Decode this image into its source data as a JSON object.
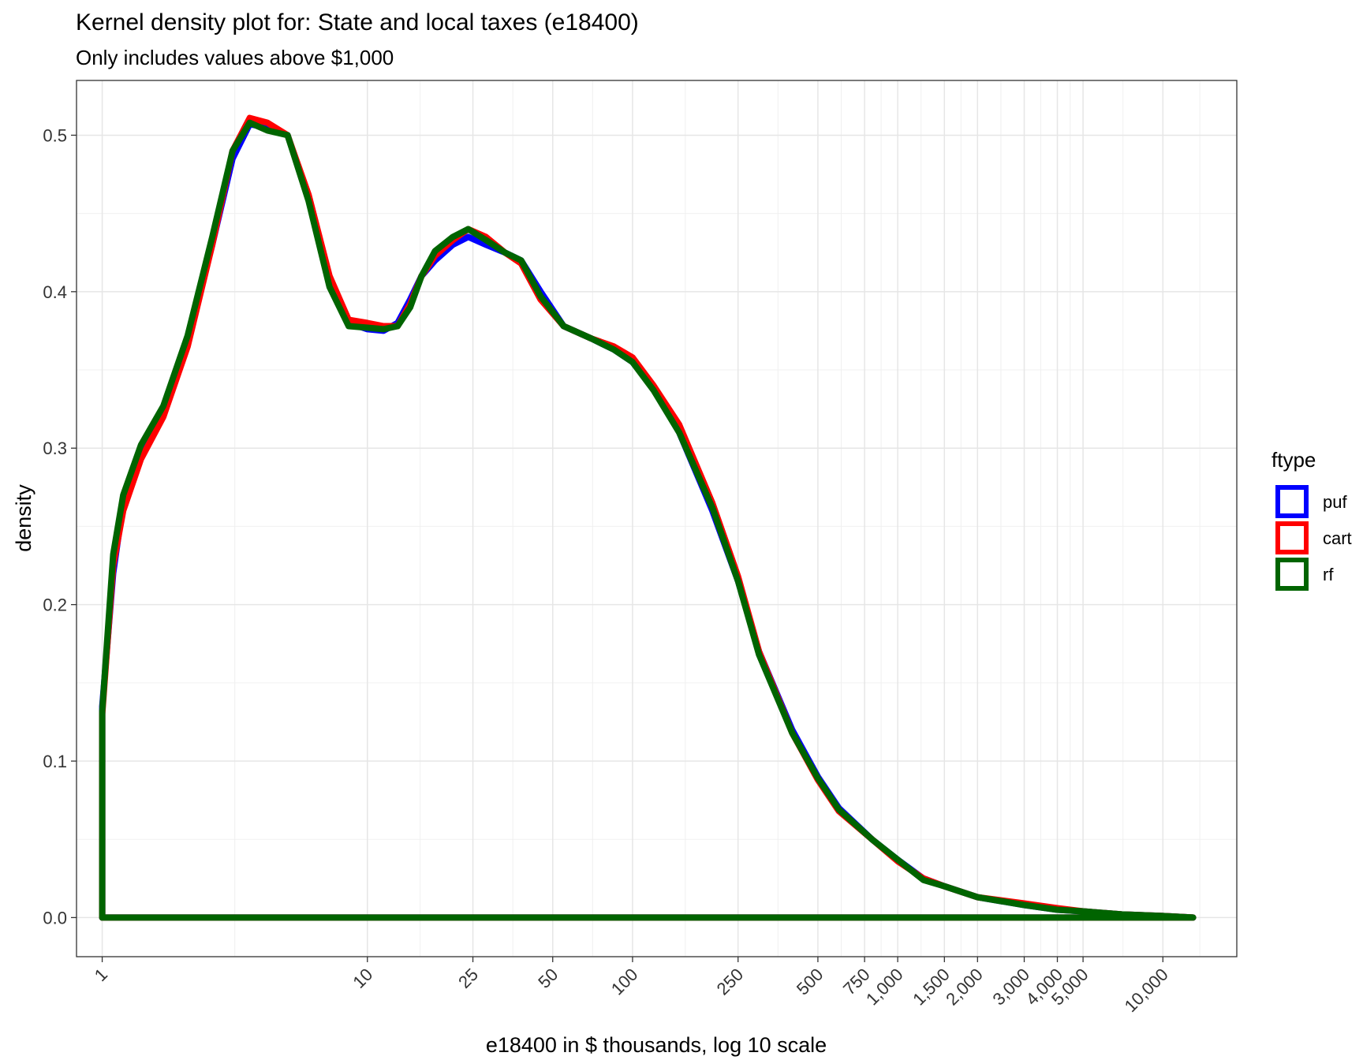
{
  "chart_data": {
    "type": "line",
    "title": "Kernel density plot for: State and local taxes (e18400)",
    "subtitle": "Only includes values above $1,000",
    "xlabel": "e18400 in $ thousands, log 10 scale",
    "ylabel": "density",
    "x_scale": "log10",
    "xlim": [
      0.8,
      19000
    ],
    "ylim": [
      -0.025,
      0.535
    ],
    "x_ticks": [
      1,
      10,
      25,
      50,
      100,
      250,
      500,
      750,
      1000,
      1500,
      2000,
      3000,
      4000,
      5000,
      10000
    ],
    "x_tick_labels": [
      "1",
      "10",
      "25",
      "50",
      "100",
      "250",
      "500",
      "750",
      "1,000",
      "1,500",
      "2,000",
      "3,000",
      "4,000",
      "5,000",
      "10,000"
    ],
    "y_ticks": [
      0.0,
      0.1,
      0.2,
      0.3,
      0.4,
      0.5
    ],
    "y_tick_labels": [
      "0.0",
      "0.1",
      "0.2",
      "0.3",
      "0.4",
      "0.5"
    ],
    "grid": true,
    "legend": {
      "title": "ftype",
      "position": "right"
    },
    "series": [
      {
        "name": "puf",
        "color": "#0000FF",
        "x": [
          1,
          1,
          1.1,
          1.2,
          1.4,
          1.7,
          2.1,
          2.6,
          3.1,
          3.6,
          4.2,
          5.0,
          6.0,
          7.2,
          8.5,
          10,
          11.5,
          13,
          14.5,
          16,
          18,
          21,
          24,
          28,
          33,
          38,
          45,
          55,
          70,
          85,
          100,
          120,
          150,
          200,
          250,
          300,
          400,
          500,
          600,
          800,
          1000,
          1250,
          1500,
          2000,
          3000,
          4000,
          5000,
          7000,
          10000,
          13000,
          13000,
          1
        ],
        "y": [
          0,
          0.135,
          0.22,
          0.265,
          0.3,
          0.325,
          0.37,
          0.43,
          0.485,
          0.507,
          0.505,
          0.5,
          0.46,
          0.405,
          0.38,
          0.376,
          0.375,
          0.38,
          0.395,
          0.41,
          0.42,
          0.43,
          0.435,
          0.43,
          0.425,
          0.42,
          0.4,
          0.378,
          0.37,
          0.363,
          0.355,
          0.338,
          0.31,
          0.26,
          0.215,
          0.17,
          0.12,
          0.09,
          0.07,
          0.05,
          0.037,
          0.025,
          0.02,
          0.013,
          0.008,
          0.005,
          0.004,
          0.002,
          0.001,
          0,
          0,
          0
        ]
      },
      {
        "name": "cart",
        "color": "#FF0000",
        "x": [
          1,
          1,
          1.1,
          1.2,
          1.4,
          1.7,
          2.1,
          2.6,
          3.1,
          3.6,
          4.2,
          5.0,
          6.0,
          7.2,
          8.5,
          10,
          11.5,
          13,
          14.5,
          16,
          18,
          21,
          24,
          28,
          33,
          38,
          45,
          55,
          70,
          85,
          100,
          120,
          150,
          200,
          250,
          300,
          400,
          500,
          600,
          800,
          1000,
          1250,
          1500,
          2000,
          3000,
          4000,
          5000,
          7000,
          10000,
          13000,
          13000,
          1
        ],
        "y": [
          0,
          0.13,
          0.225,
          0.26,
          0.293,
          0.32,
          0.365,
          0.43,
          0.49,
          0.511,
          0.508,
          0.5,
          0.462,
          0.41,
          0.382,
          0.38,
          0.378,
          0.378,
          0.392,
          0.41,
          0.423,
          0.433,
          0.44,
          0.435,
          0.425,
          0.418,
          0.395,
          0.378,
          0.37,
          0.365,
          0.358,
          0.34,
          0.315,
          0.265,
          0.218,
          0.17,
          0.118,
          0.088,
          0.068,
          0.05,
          0.036,
          0.025,
          0.02,
          0.013,
          0.009,
          0.006,
          0.004,
          0.002,
          0.001,
          0,
          0,
          0
        ]
      },
      {
        "name": "rf",
        "color": "#006400",
        "x": [
          1,
          1,
          1.1,
          1.2,
          1.4,
          1.7,
          2.1,
          2.6,
          3.1,
          3.6,
          4.2,
          5.0,
          6.0,
          7.2,
          8.5,
          10,
          11.5,
          13,
          14.5,
          16,
          18,
          21,
          24,
          28,
          33,
          38,
          45,
          55,
          70,
          85,
          100,
          120,
          150,
          200,
          250,
          300,
          400,
          500,
          600,
          800,
          1000,
          1250,
          1500,
          2000,
          3000,
          4000,
          5000,
          7000,
          10000,
          13000,
          13000,
          1
        ],
        "y": [
          0,
          0.132,
          0.232,
          0.27,
          0.302,
          0.327,
          0.372,
          0.435,
          0.49,
          0.508,
          0.503,
          0.5,
          0.458,
          0.403,
          0.378,
          0.377,
          0.376,
          0.378,
          0.39,
          0.41,
          0.426,
          0.435,
          0.44,
          0.433,
          0.425,
          0.42,
          0.397,
          0.378,
          0.37,
          0.363,
          0.355,
          0.337,
          0.31,
          0.262,
          0.215,
          0.168,
          0.118,
          0.089,
          0.069,
          0.05,
          0.037,
          0.024,
          0.02,
          0.013,
          0.008,
          0.005,
          0.004,
          0.002,
          0.001,
          0,
          0,
          0
        ]
      }
    ]
  }
}
